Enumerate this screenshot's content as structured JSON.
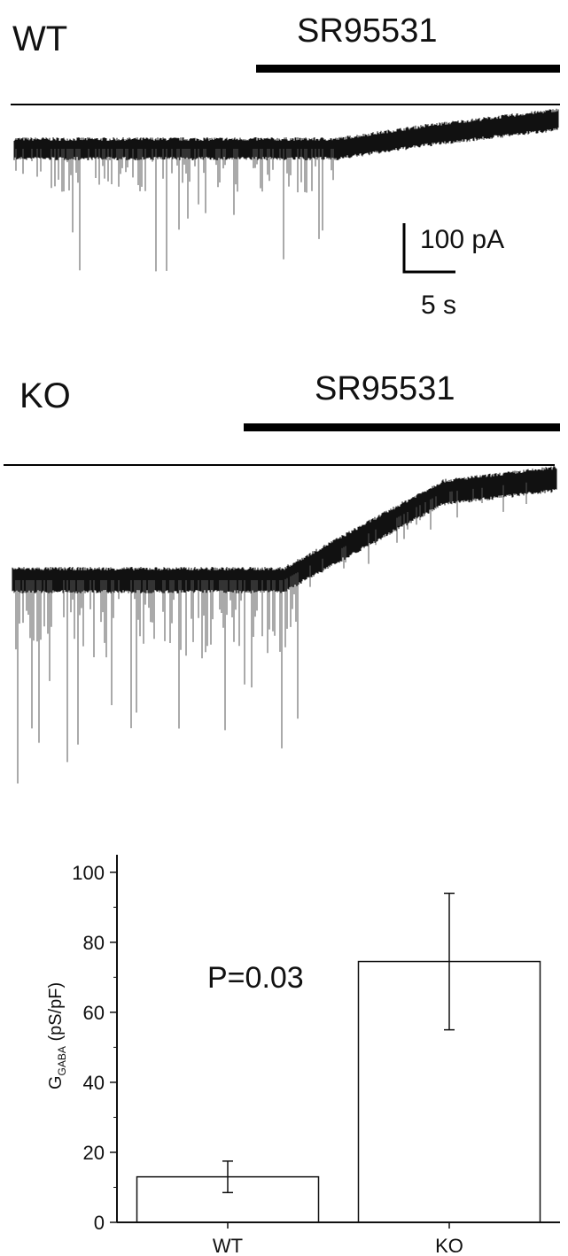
{
  "panels": [
    {
      "label": "WT",
      "drug": "SR95531"
    },
    {
      "label": "KO",
      "drug": "SR95531"
    }
  ],
  "scale_bar": {
    "current": "100 pA",
    "time": "5 s"
  },
  "chart_data": {
    "type": "bar",
    "categories": [
      "WT",
      "KO"
    ],
    "values": [
      13,
      74.5
    ],
    "errors": [
      {
        "low": 8.5,
        "high": 17.5
      },
      {
        "low": 55,
        "high": 94
      }
    ],
    "ylabel_main": "G",
    "ylabel_sub": "GABA",
    "ylabel_unit": "(pS/pF)",
    "annotation": "P=0.03",
    "ylim": [
      0,
      105
    ],
    "yticks": [
      0,
      20,
      40,
      60,
      80,
      100
    ],
    "grid": false
  }
}
